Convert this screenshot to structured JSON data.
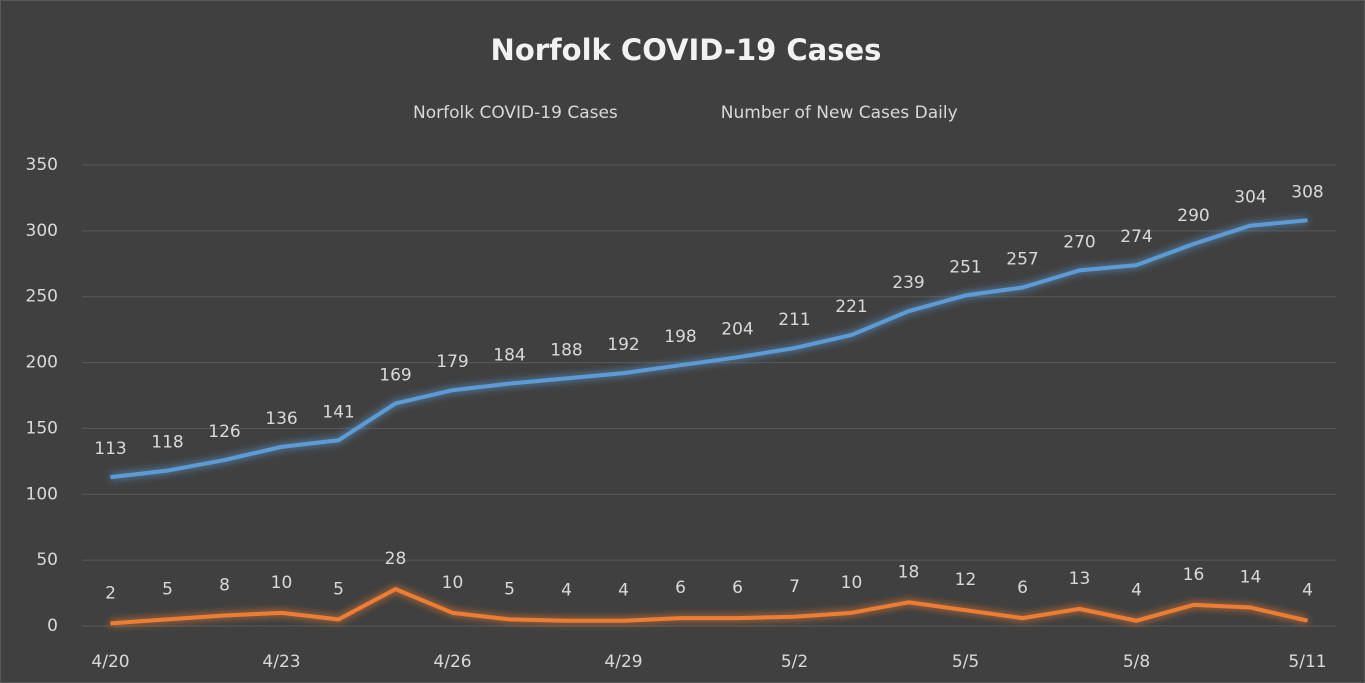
{
  "chart_data": {
    "type": "line",
    "title": "Norfolk COVID-19 Cases",
    "categories": [
      "4/20",
      null,
      null,
      "4/23",
      null,
      null,
      "4/26",
      null,
      null,
      "4/29",
      null,
      null,
      "5/2",
      null,
      null,
      "5/5",
      null,
      null,
      "5/8",
      null,
      null,
      "5/11"
    ],
    "series": [
      {
        "name": "Norfolk COVID-19 Cases",
        "color": "#5b9bd5",
        "values": [
          113,
          118,
          126,
          136,
          141,
          169,
          179,
          184,
          188,
          192,
          198,
          204,
          211,
          221,
          239,
          251,
          257,
          270,
          274,
          290,
          304,
          308
        ]
      },
      {
        "name": "Number of New Cases Daily",
        "color": "#ed7d31",
        "values": [
          2,
          5,
          8,
          10,
          5,
          28,
          10,
          5,
          4,
          4,
          6,
          6,
          7,
          10,
          18,
          12,
          6,
          13,
          4,
          16,
          14,
          4
        ]
      }
    ],
    "ylim": [
      0,
      350
    ],
    "yticks": [
      0,
      50,
      100,
      150,
      200,
      250,
      300,
      350
    ],
    "grid": true,
    "legend": "top"
  }
}
